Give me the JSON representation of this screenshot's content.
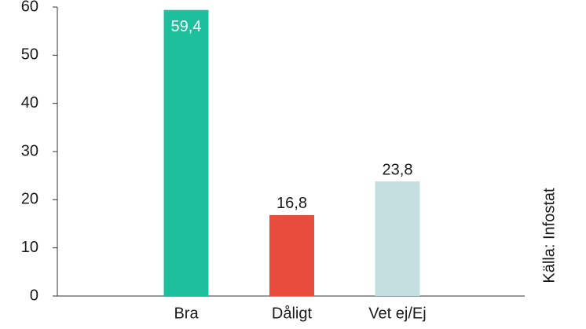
{
  "chart_data": {
    "type": "bar",
    "categories": [
      "Bra",
      "Dåligt",
      "Vet ej/Ej"
    ],
    "values": [
      59.4,
      16.8,
      23.8
    ],
    "value_labels": [
      "59,4",
      "16,8",
      "23,8"
    ],
    "colors": [
      "#1dbf9c",
      "#e84c3d",
      "#c4dfe0"
    ],
    "ylim": [
      0,
      60
    ],
    "yticks": [
      0,
      10,
      20,
      30,
      40,
      50,
      60
    ],
    "source": "Källa: Infostat"
  }
}
